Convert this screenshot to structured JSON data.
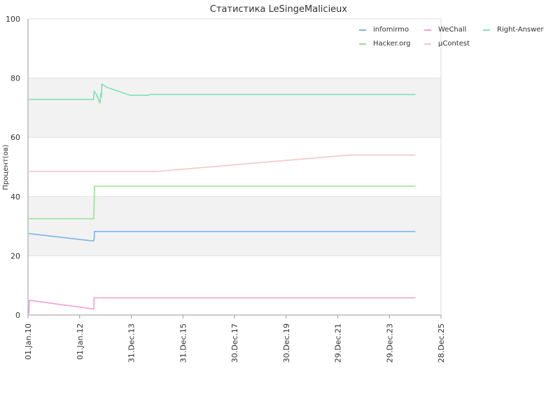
{
  "chart_data": {
    "type": "line",
    "title": "Статистика LeSingeMalicieux",
    "ylabel": "Процент(ов)",
    "xlabel": "",
    "ylim": [
      0,
      100
    ],
    "yticks": [
      0,
      20,
      40,
      60,
      80,
      100
    ],
    "xlim": [
      "2010-01-01",
      "2025-12-28"
    ],
    "xticks": [
      {
        "date": "2010-01-01",
        "label": "01.Jan.10"
      },
      {
        "date": "2012-01-01",
        "label": "01.Jan.12"
      },
      {
        "date": "2013-12-31",
        "label": "31.Dec.13"
      },
      {
        "date": "2015-12-31",
        "label": "31.Dec.15"
      },
      {
        "date": "2017-12-30",
        "label": "30.Dec.17"
      },
      {
        "date": "2019-12-30",
        "label": "30.Dec.19"
      },
      {
        "date": "2021-12-29",
        "label": "29.Dec.21"
      },
      {
        "date": "2023-12-29",
        "label": "29.Dec.23"
      },
      {
        "date": "2025-12-28",
        "label": "28.Dec.25"
      }
    ],
    "grid": true,
    "legend_position": "top-right",
    "series": [
      {
        "name": "infomirmo",
        "color": "#7fb3e8",
        "points": [
          [
            "2010-01-15",
            27.5
          ],
          [
            "2012-07-10",
            25.0
          ],
          [
            "2012-07-20",
            25.2
          ],
          [
            "2012-07-25",
            26.0
          ],
          [
            "2012-07-28",
            28.2
          ],
          [
            "2025-01-01",
            28.2
          ]
        ]
      },
      {
        "name": "Hacker.org",
        "color": "#98e090",
        "points": [
          [
            "2010-01-15",
            32.5
          ],
          [
            "2012-07-20",
            32.5
          ],
          [
            "2012-07-28",
            43.5
          ],
          [
            "2025-01-01",
            43.5
          ]
        ]
      },
      {
        "name": "WeChall",
        "color": "#f0a0d0",
        "points": [
          [
            "2010-01-15",
            0.5
          ],
          [
            "2010-01-20",
            5.0
          ],
          [
            "2012-07-15",
            2.0
          ],
          [
            "2012-07-20",
            2.2
          ],
          [
            "2012-07-24",
            5.8
          ],
          [
            "2025-01-01",
            5.8
          ]
        ]
      },
      {
        "name": "µContest",
        "color": "#f4c8c8",
        "points": [
          [
            "2010-01-15",
            48.5
          ],
          [
            "2015-01-01",
            48.5
          ],
          [
            "2022-06-01",
            54.0
          ],
          [
            "2025-01-01",
            54.0
          ]
        ]
      },
      {
        "name": "Right-Answer",
        "color": "#7fe0b8",
        "points": [
          [
            "2010-01-15",
            72.8
          ],
          [
            "2012-07-15",
            72.8
          ],
          [
            "2012-07-25",
            75.5
          ],
          [
            "2012-08-25",
            74.5
          ],
          [
            "2012-10-15",
            71.5
          ],
          [
            "2012-10-25",
            74.5
          ],
          [
            "2012-11-05",
            74.0
          ],
          [
            "2012-11-10",
            78.0
          ],
          [
            "2013-01-10",
            77.0
          ],
          [
            "2013-12-15",
            74.2
          ],
          [
            "2014-09-01",
            74.2
          ],
          [
            "2014-09-15",
            74.5
          ],
          [
            "2025-01-01",
            74.5
          ]
        ]
      }
    ]
  }
}
